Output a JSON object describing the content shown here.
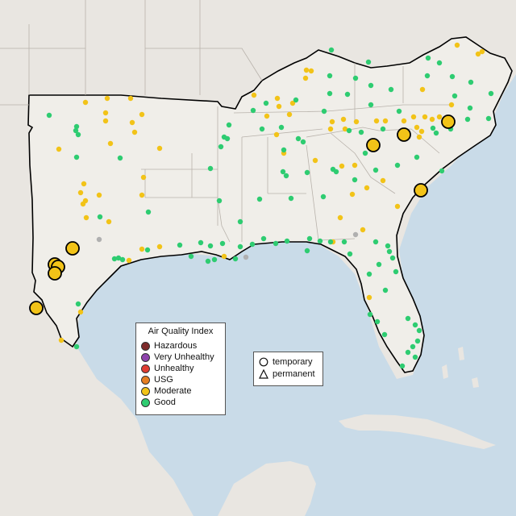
{
  "legend": {
    "title": "Air Quality Index",
    "categories": [
      {
        "label": "Hazardous",
        "color": "#7e2a2a"
      },
      {
        "label": "Very Unhealthy",
        "color": "#8e44ad"
      },
      {
        "label": "Unhealthy",
        "color": "#e03c31"
      },
      {
        "label": "USG",
        "color": "#e67e22"
      },
      {
        "label": "Moderate",
        "color": "#f2c318"
      },
      {
        "label": "Good",
        "color": "#2ecc71"
      }
    ]
  },
  "monitor_types": {
    "items": [
      {
        "label": "temporary",
        "icon": "circle-icon"
      },
      {
        "label": "permanent",
        "icon": "triangle-icon"
      }
    ]
  },
  "colors": {
    "water": "#c9dbe8",
    "land": "#ebe8e3",
    "region_land": "#f0eee9",
    "state_border": "#b8b2ab",
    "region_outline": "#000000",
    "no_data": "#b0b0b0",
    "moderate": "#f2c318",
    "good": "#2ecc71"
  }
}
